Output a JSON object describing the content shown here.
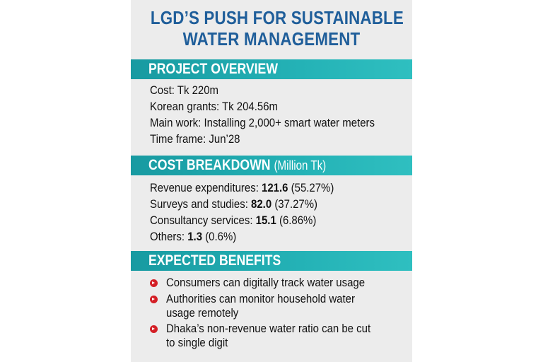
{
  "title": {
    "line1": "LGD’S PUSH FOR SUSTAINABLE",
    "line2": "WATER MANAGEMENT"
  },
  "overview": {
    "heading": "PROJECT OVERVIEW",
    "items": [
      "Cost: Tk 220m",
      "Korean grants: Tk 204.56m",
      "Main work: Installing 2,000+ smart water meters",
      "Time frame: Jun’28"
    ]
  },
  "cost": {
    "heading": "COST BREAKDOWN",
    "unit": "(Million Tk)",
    "items": [
      {
        "label": "Revenue expenditures:",
        "value": "121.6",
        "pct": "(55.27%)"
      },
      {
        "label": "Surveys and studies:",
        "value": "82.0",
        "pct": "(37.27%)"
      },
      {
        "label": "Consultancy services:",
        "value": "15.1",
        "pct": "(6.86%)"
      },
      {
        "label": "Others:",
        "value": "1.3",
        "pct": "(0.6%)"
      }
    ]
  },
  "benefits": {
    "heading": "EXPECTED BENEFITS",
    "items": [
      {
        "line1": "Consumers can digitally track water usage",
        "line2": ""
      },
      {
        "line1": "Authorities can monitor household water",
        "line2": "usage remotely"
      },
      {
        "line1": "Dhaka’s non-revenue water ratio can be cut",
        "line2": "to single digit"
      }
    ]
  },
  "colors": {
    "title": "#1f5e9a",
    "band": "#24b2b6",
    "bullet": "#d41f26"
  },
  "icons": {
    "bullet": "arrow-bullet-icon"
  }
}
